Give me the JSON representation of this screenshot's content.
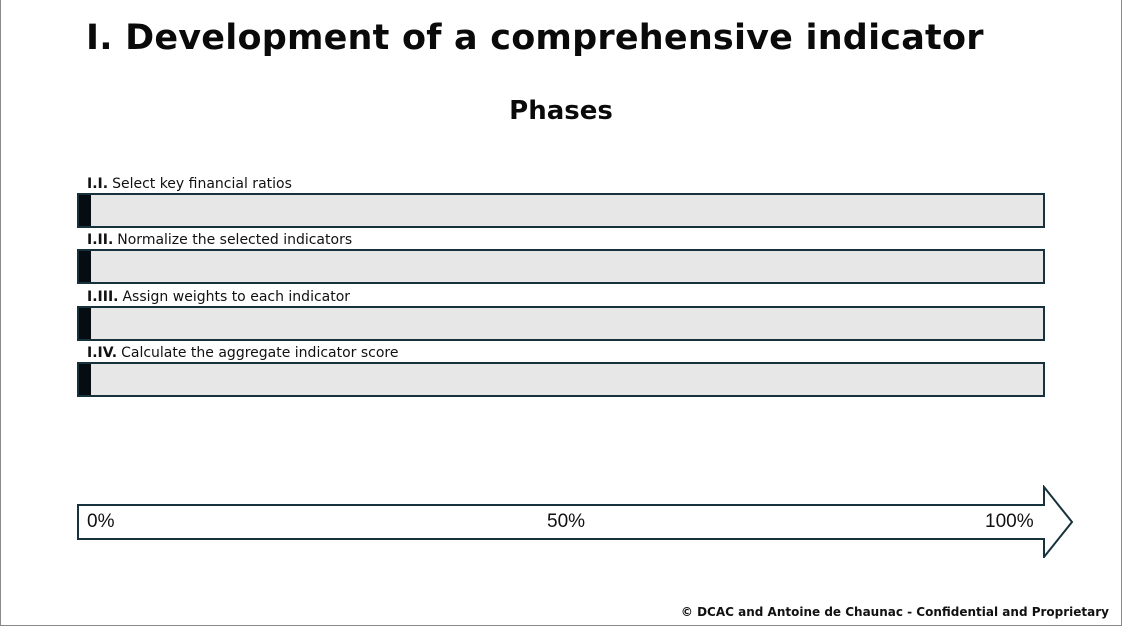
{
  "slide": {
    "title": "I. Development of a comprehensive indicator",
    "subtitle": "Phases"
  },
  "phases": [
    {
      "number": "I.I.",
      "label": "Select key financial ratios",
      "progress": 0.012
    },
    {
      "number": "I.II.",
      "label": "Normalize the selected indicators",
      "progress": 0.012
    },
    {
      "number": "I.III.",
      "label": "Assign weights to each indicator",
      "progress": 0.012
    },
    {
      "number": "I.IV.",
      "label": "Calculate the aggregate indicator score",
      "progress": 0.012
    }
  ],
  "scale": {
    "start": "0%",
    "mid": "50%",
    "end": "100%"
  },
  "colors": {
    "bar_border": "#17323d",
    "bar_track": "#e7e7e7",
    "bar_fill": "#050d12"
  },
  "footer": {
    "text": "© DCAC and Antoine de Chaunac - Confidential and Proprietary"
  }
}
